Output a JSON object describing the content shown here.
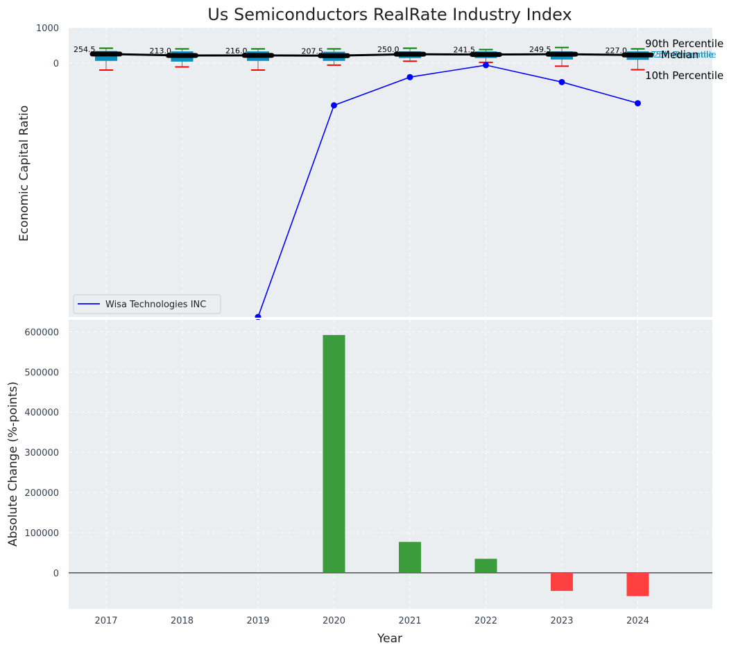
{
  "chart_data": [
    {
      "type": "box",
      "title": "Us Semiconductors RealRate Industry Index",
      "ylabel": "Economic Capital Ratio",
      "categories": [
        "2017",
        "2018",
        "2019",
        "2020",
        "2021",
        "2022",
        "2023",
        "2024"
      ],
      "y_ticks": [
        "1000",
        "0"
      ],
      "y_tick_values": [
        1000,
        0
      ],
      "ylim": [
        -7200,
        1000
      ],
      "industry": {
        "median": [
          254.5,
          213.0,
          216.0,
          207.5,
          250.0,
          241.5,
          249.5,
          227.0
        ],
        "p25": [
          60,
          40,
          60,
          60,
          140,
          140,
          100,
          90
        ],
        "p75": [
          340,
          330,
          330,
          320,
          330,
          330,
          330,
          330
        ],
        "p10": [
          -200,
          -110,
          -200,
          -60,
          50,
          20,
          -90,
          -190
        ],
        "p90": [
          420,
          400,
          400,
          400,
          420,
          380,
          440,
          400
        ],
        "median_labels": [
          "254.5",
          "213.0",
          "216.0",
          "207.5",
          "250.0",
          "241.5",
          "249.5",
          "227.0"
        ]
      },
      "company_series": {
        "name": "Wisa Technologies INC",
        "color": "#0000ff",
        "values": [
          null,
          null,
          -7200,
          -1200,
          -400,
          -60,
          -540,
          -1140
        ]
      },
      "annotations": {
        "p90": "90th Percentile",
        "median": "Median",
        "p10": "10th Percentile",
        "p75": "75th Percentile",
        "p25": "25th Percentile"
      },
      "colors": {
        "box": "#0b8fc0",
        "median_line": "#000000",
        "p90_cap": "#008000",
        "p10_cap": "#ff0000",
        "whisker": "#6a6a6a",
        "background": "#eaeef0"
      }
    },
    {
      "type": "bar",
      "ylabel": "Absolute Change (%-points)",
      "xlabel": "Year",
      "categories": [
        "2017",
        "2018",
        "2019",
        "2020",
        "2021",
        "2022",
        "2023",
        "2024"
      ],
      "values": [
        0,
        0,
        0,
        592000,
        77000,
        35000,
        -45000,
        -58000
      ],
      "y_ticks": [
        "600000",
        "500000",
        "400000",
        "300000",
        "200000",
        "100000",
        "0"
      ],
      "y_tick_values": [
        600000,
        500000,
        400000,
        300000,
        200000,
        100000,
        0
      ],
      "ylim": [
        -90000,
        630000
      ],
      "colors": {
        "positive": "#3b9c3b",
        "negative": "#ff4040"
      }
    }
  ]
}
